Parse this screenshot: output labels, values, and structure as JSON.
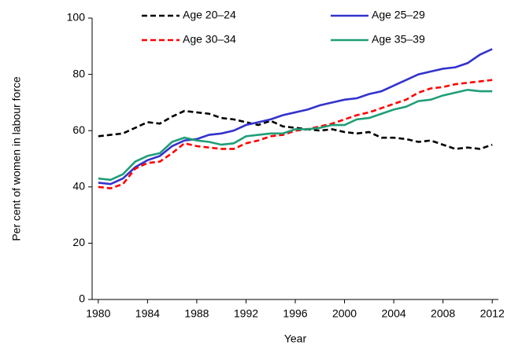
{
  "chart_data": {
    "type": "line",
    "x_label": "Year",
    "y_label": "Per cent of women in labour force",
    "x": [
      1980,
      1981,
      1982,
      1983,
      1984,
      1985,
      1986,
      1987,
      1988,
      1989,
      1990,
      1991,
      1992,
      1993,
      1994,
      1995,
      1996,
      1997,
      1998,
      1999,
      2000,
      2001,
      2002,
      2003,
      2004,
      2005,
      2006,
      2007,
      2008,
      2009,
      2010,
      2011,
      2012
    ],
    "series": [
      {
        "name": "Age 20–24",
        "color": "#000000",
        "dash": true,
        "values": [
          58,
          58.5,
          59,
          61,
          63,
          62.5,
          65,
          67,
          66.5,
          66,
          64.5,
          64,
          63,
          62,
          63.5,
          61.5,
          61,
          60.5,
          60,
          60.5,
          59.5,
          59,
          59.5,
          57.5,
          57.5,
          57,
          56,
          56.5,
          55,
          53.5,
          54,
          53.5,
          55
        ]
      },
      {
        "name": "Age 25–29",
        "color": "#3333cc",
        "dash": false,
        "values": [
          41.5,
          41,
          43,
          47,
          49.5,
          51,
          54.5,
          56.5,
          57,
          58.5,
          59,
          60,
          62,
          63,
          64,
          65.5,
          66.5,
          67.5,
          69,
          70,
          71,
          71.5,
          73,
          74,
          76,
          78,
          80,
          81,
          82,
          82.5,
          84,
          87,
          89
        ]
      },
      {
        "name": "Age 30–34",
        "color": "#ff0000",
        "dash": true,
        "values": [
          40,
          39.5,
          41,
          46.5,
          48.5,
          49,
          52,
          55.5,
          54.5,
          54,
          53.5,
          53.5,
          55.5,
          56.5,
          58,
          58.5,
          60,
          60.5,
          61.5,
          62.5,
          64,
          65.5,
          66.5,
          68,
          69.5,
          71,
          73.5,
          75,
          75.5,
          76.5,
          77,
          77.5,
          78
        ]
      },
      {
        "name": "Age 35–39",
        "color": "#1f9e78",
        "dash": false,
        "values": [
          43,
          42.5,
          44.5,
          49,
          51,
          52,
          56,
          57.5,
          56.5,
          56,
          55,
          55.5,
          58,
          58.5,
          59,
          59,
          60.5,
          60.5,
          61,
          62,
          62,
          64,
          64.5,
          66,
          67.5,
          68.5,
          70.5,
          71,
          72.5,
          73.5,
          74.5,
          74,
          74
        ]
      }
    ],
    "xlim": [
      1979.5,
      2012.5
    ],
    "xticks": [
      1980,
      1984,
      1988,
      1992,
      1996,
      2000,
      2004,
      2008,
      2012
    ],
    "ylim": [
      0,
      100
    ],
    "yticks": [
      0,
      20,
      40,
      60,
      80,
      100
    ],
    "grid": false
  }
}
